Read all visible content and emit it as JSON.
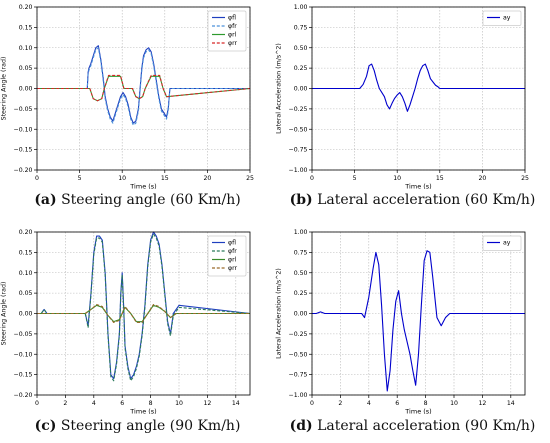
{
  "chart_data": [
    {
      "type": "line",
      "caption_tag": "(a)",
      "caption_text": " Steering angle (60 Km/h)",
      "xlabel": "Time (s)",
      "ylabel": "Steering Angle (rad)",
      "xlim": [
        0,
        25
      ],
      "ylim": [
        -0.2,
        0.2
      ],
      "xticks": [
        0,
        5,
        10,
        15,
        20,
        25
      ],
      "yticks": [
        -0.2,
        -0.15,
        -0.1,
        -0.05,
        0.0,
        0.05,
        0.1,
        0.15,
        0.2
      ],
      "ytick_labels": [
        "−0.20",
        "−0.15",
        "−0.10",
        "−0.05",
        "0.00",
        "0.05",
        "0.10",
        "0.15",
        "0.20"
      ],
      "grid": true,
      "legend_position": "top-right",
      "series": [
        {
          "name": "φfl",
          "color": "#1f3fbf",
          "dash": "solid",
          "x": [
            0,
            5.9,
            6.0,
            6.1,
            6.3,
            6.6,
            6.9,
            7.2,
            7.5,
            7.8,
            8.0,
            8.3,
            8.6,
            8.9,
            9.2,
            9.5,
            9.8,
            10.1,
            10.4,
            10.7,
            11.0,
            11.3,
            11.6,
            11.9,
            12.1,
            12.3,
            12.5,
            12.8,
            13.1,
            13.4,
            13.7,
            14.0,
            14.3,
            14.6,
            14.9,
            15.2,
            15.4,
            15.6,
            25
          ],
          "y": [
            0,
            0,
            0.04,
            0.05,
            0.06,
            0.08,
            0.1,
            0.105,
            0.07,
            0.02,
            -0.02,
            -0.05,
            -0.07,
            -0.08,
            -0.06,
            -0.04,
            -0.02,
            -0.01,
            -0.02,
            -0.04,
            -0.07,
            -0.085,
            -0.08,
            -0.05,
            0.0,
            0.05,
            0.08,
            0.095,
            0.1,
            0.09,
            0.06,
            0.02,
            -0.02,
            -0.05,
            -0.06,
            -0.07,
            -0.05,
            0.0,
            0
          ]
        },
        {
          "name": "φfr",
          "color": "#4a90d9",
          "dash": "dashed",
          "x": [
            0,
            5.9,
            6.0,
            6.1,
            6.3,
            6.6,
            6.9,
            7.2,
            7.5,
            7.8,
            8.0,
            8.3,
            8.6,
            8.9,
            9.2,
            9.5,
            9.8,
            10.1,
            10.4,
            10.7,
            11.0,
            11.3,
            11.6,
            11.9,
            12.1,
            12.3,
            12.5,
            12.8,
            13.1,
            13.4,
            13.7,
            14.0,
            14.3,
            14.6,
            14.9,
            15.2,
            15.4,
            15.6,
            25
          ],
          "y": [
            0,
            0,
            0.035,
            0.045,
            0.055,
            0.075,
            0.095,
            0.1,
            0.065,
            0.015,
            -0.025,
            -0.055,
            -0.075,
            -0.085,
            -0.065,
            -0.045,
            -0.025,
            -0.015,
            -0.025,
            -0.045,
            -0.075,
            -0.09,
            -0.085,
            -0.055,
            -0.005,
            0.045,
            0.075,
            0.09,
            0.095,
            0.085,
            0.055,
            0.015,
            -0.025,
            -0.055,
            -0.065,
            -0.075,
            -0.055,
            0.0,
            0
          ]
        },
        {
          "name": "φrl",
          "color": "#2e9a2e",
          "dash": "solid",
          "x": [
            0,
            6.2,
            6.6,
            7.1,
            7.6,
            7.9,
            8.4,
            9.8,
            10.2,
            11.2,
            11.6,
            12.0,
            12.4,
            12.7,
            13.4,
            14.4,
            14.8,
            15.2,
            25
          ],
          "y": [
            0,
            0,
            -0.025,
            -0.03,
            -0.025,
            0.0,
            0.03,
            0.03,
            0.0,
            0.0,
            -0.02,
            -0.025,
            -0.02,
            0.0,
            0.03,
            0.03,
            0.0,
            -0.02,
            0
          ]
        },
        {
          "name": "φrr",
          "color": "#d62728",
          "dash": "dashed",
          "x": [
            0,
            6.2,
            6.6,
            7.1,
            7.6,
            7.9,
            8.4,
            9.8,
            10.2,
            11.2,
            11.6,
            12.0,
            12.4,
            12.7,
            13.4,
            14.4,
            14.8,
            15.2,
            25
          ],
          "y": [
            0,
            0,
            -0.025,
            -0.03,
            -0.025,
            0.0,
            0.032,
            0.032,
            0.0,
            0.0,
            -0.02,
            -0.025,
            -0.02,
            0.0,
            0.032,
            0.032,
            0.0,
            -0.02,
            0
          ]
        }
      ]
    },
    {
      "type": "line",
      "caption_tag": "(b)",
      "caption_text": " Lateral acceleration (60 Km/h)",
      "xlabel": "Time (s)",
      "ylabel": "Lateral Acceleration (m/s^2)",
      "xlim": [
        0,
        25
      ],
      "ylim": [
        -1.0,
        1.0
      ],
      "xticks": [
        0,
        5,
        10,
        15,
        20,
        25
      ],
      "yticks": [
        -1.0,
        -0.75,
        -0.5,
        -0.25,
        0.0,
        0.25,
        0.5,
        0.75,
        1.0
      ],
      "ytick_labels": [
        "−1.00",
        "−0.75",
        "−0.50",
        "−0.25",
        "0.00",
        "0.25",
        "0.50",
        "0.75",
        "1.00"
      ],
      "grid": true,
      "legend_position": "top-right",
      "series": [
        {
          "name": "ay",
          "color": "#0000cc",
          "dash": "solid",
          "x": [
            0,
            5.6,
            6.0,
            6.4,
            6.7,
            7.0,
            7.3,
            7.6,
            7.9,
            8.2,
            8.5,
            8.8,
            9.1,
            9.4,
            9.7,
            10.0,
            10.3,
            10.6,
            10.9,
            11.2,
            11.5,
            11.8,
            12.1,
            12.4,
            12.7,
            13.0,
            13.3,
            13.6,
            13.9,
            14.2,
            14.5,
            14.8,
            15.0,
            15.4,
            25
          ],
          "y": [
            0,
            0,
            0.05,
            0.15,
            0.28,
            0.3,
            0.22,
            0.1,
            0.0,
            -0.05,
            -0.1,
            -0.2,
            -0.25,
            -0.18,
            -0.12,
            -0.08,
            -0.05,
            -0.1,
            -0.18,
            -0.28,
            -0.2,
            -0.1,
            0.0,
            0.12,
            0.22,
            0.28,
            0.3,
            0.22,
            0.12,
            0.08,
            0.04,
            0.02,
            0.0,
            0.0,
            0
          ]
        }
      ]
    },
    {
      "type": "line",
      "caption_tag": "(c)",
      "caption_text": " Steering angle (90 Km/h)",
      "xlabel": "Time (s)",
      "ylabel": "Steering Angle (rad)",
      "xlim": [
        0,
        15
      ],
      "ylim": [
        -0.2,
        0.2
      ],
      "xticks": [
        0,
        2,
        4,
        6,
        8,
        10,
        12,
        14
      ],
      "yticks": [
        -0.2,
        -0.15,
        -0.1,
        -0.05,
        0.0,
        0.05,
        0.1,
        0.15,
        0.2
      ],
      "ytick_labels": [
        "−0.20",
        "−0.15",
        "−0.10",
        "−0.05",
        "0.00",
        "0.05",
        "0.10",
        "0.15",
        "0.20"
      ],
      "grid": true,
      "legend_position": "top-right",
      "series": [
        {
          "name": "φfl",
          "color": "#1f3fbf",
          "dash": "solid",
          "x": [
            0,
            0.3,
            0.5,
            0.7,
            1.0,
            3.4,
            3.6,
            3.8,
            4.0,
            4.2,
            4.4,
            4.6,
            4.8,
            5.0,
            5.2,
            5.4,
            5.6,
            5.8,
            5.9,
            6.0,
            6.1,
            6.2,
            6.4,
            6.6,
            6.8,
            7.0,
            7.2,
            7.4,
            7.6,
            7.8,
            8.0,
            8.2,
            8.4,
            8.6,
            8.8,
            9.0,
            9.2,
            9.4,
            9.6,
            10.0,
            15
          ],
          "y": [
            0,
            0,
            0.01,
            0.0,
            0,
            0,
            -0.03,
            0.05,
            0.15,
            0.19,
            0.19,
            0.18,
            0.1,
            -0.05,
            -0.15,
            -0.16,
            -0.12,
            -0.05,
            0.05,
            0.1,
            0.02,
            -0.08,
            -0.13,
            -0.16,
            -0.15,
            -0.13,
            -0.1,
            -0.05,
            0.02,
            0.12,
            0.18,
            0.2,
            0.19,
            0.17,
            0.12,
            0.05,
            -0.02,
            -0.05,
            0.0,
            0.02,
            0
          ]
        },
        {
          "name": "φfr",
          "color": "#2a7a5a",
          "dash": "dashed",
          "x": [
            0,
            0.3,
            0.5,
            0.7,
            1.0,
            3.4,
            3.6,
            3.8,
            4.0,
            4.2,
            4.4,
            4.6,
            4.8,
            5.0,
            5.2,
            5.4,
            5.6,
            5.8,
            5.9,
            6.0,
            6.1,
            6.2,
            6.4,
            6.6,
            6.8,
            7.0,
            7.2,
            7.4,
            7.6,
            7.8,
            8.0,
            8.2,
            8.4,
            8.6,
            8.8,
            9.0,
            9.2,
            9.4,
            9.6,
            10.0,
            15
          ],
          "y": [
            0,
            0,
            0.01,
            0.0,
            0,
            0,
            -0.035,
            0.045,
            0.145,
            0.185,
            0.185,
            0.175,
            0.095,
            -0.055,
            -0.155,
            -0.165,
            -0.125,
            -0.055,
            0.045,
            0.095,
            0.015,
            -0.085,
            -0.135,
            -0.165,
            -0.155,
            -0.135,
            -0.105,
            -0.055,
            0.015,
            0.115,
            0.175,
            0.195,
            0.185,
            0.165,
            0.115,
            0.045,
            -0.025,
            -0.055,
            -0.005,
            0.015,
            0
          ]
        },
        {
          "name": "φrl",
          "color": "#3a8a2a",
          "dash": "solid",
          "x": [
            0,
            3.4,
            3.8,
            4.2,
            4.6,
            5.0,
            5.4,
            5.8,
            6.2,
            6.6,
            7.0,
            7.4,
            7.8,
            8.2,
            8.6,
            9.0,
            9.4,
            9.8,
            10.0,
            15
          ],
          "y": [
            0,
            0,
            0.01,
            0.02,
            0.015,
            -0.005,
            -0.02,
            -0.015,
            0.015,
            0.0,
            -0.02,
            -0.02,
            0.0,
            0.02,
            0.015,
            0.005,
            -0.01,
            0.0,
            0.0,
            0
          ]
        },
        {
          "name": "φrr",
          "color": "#9a6a2a",
          "dash": "dashed",
          "x": [
            0,
            3.4,
            3.8,
            4.2,
            4.6,
            5.0,
            5.4,
            5.8,
            6.2,
            6.6,
            7.0,
            7.4,
            7.8,
            8.2,
            8.6,
            9.0,
            9.4,
            9.8,
            10.0,
            15
          ],
          "y": [
            0,
            0,
            0.01,
            0.022,
            0.017,
            -0.005,
            -0.022,
            -0.017,
            0.017,
            0.0,
            -0.022,
            -0.022,
            0.0,
            0.022,
            0.017,
            0.005,
            -0.01,
            0.0,
            0.0,
            0
          ]
        }
      ]
    },
    {
      "type": "line",
      "caption_tag": "(d)",
      "caption_text": " Lateral acceleration (90 Km/h)",
      "xlabel": "Time (s)",
      "ylabel": "Lateral Acceleration (m/s^2)",
      "xlim": [
        0,
        15
      ],
      "ylim": [
        -1.0,
        1.0
      ],
      "xticks": [
        0,
        2,
        4,
        6,
        8,
        10,
        12,
        14
      ],
      "yticks": [
        -1.0,
        -0.75,
        -0.5,
        -0.25,
        0.0,
        0.25,
        0.5,
        0.75,
        1.0
      ],
      "ytick_labels": [
        "−1.00",
        "−0.75",
        "−0.50",
        "−0.25",
        "0.00",
        "0.25",
        "0.50",
        "0.75",
        "1.00"
      ],
      "grid": true,
      "legend_position": "top-right",
      "series": [
        {
          "name": "ay",
          "color": "#0000cc",
          "dash": "solid",
          "x": [
            0,
            0.3,
            0.6,
            0.9,
            3.5,
            3.7,
            4.0,
            4.3,
            4.5,
            4.7,
            4.9,
            5.1,
            5.3,
            5.5,
            5.7,
            5.9,
            6.1,
            6.3,
            6.5,
            6.7,
            6.9,
            7.1,
            7.3,
            7.5,
            7.7,
            7.9,
            8.1,
            8.3,
            8.5,
            8.8,
            9.1,
            9.4,
            9.7,
            10.0,
            15
          ],
          "y": [
            0,
            0,
            0.02,
            0.0,
            0,
            -0.05,
            0.2,
            0.55,
            0.75,
            0.6,
            0.1,
            -0.5,
            -0.95,
            -0.7,
            -0.2,
            0.15,
            0.28,
            0.0,
            -0.2,
            -0.35,
            -0.5,
            -0.7,
            -0.88,
            -0.5,
            0.1,
            0.65,
            0.77,
            0.75,
            0.45,
            -0.05,
            -0.15,
            -0.05,
            0.0,
            0.0,
            0
          ]
        }
      ]
    }
  ]
}
